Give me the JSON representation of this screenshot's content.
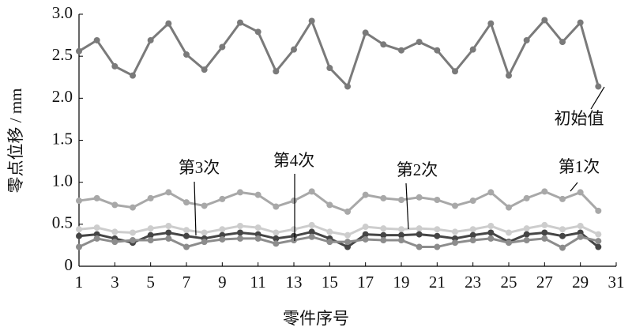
{
  "chart_data": {
    "type": "line",
    "y_label": "零点位移 / mm",
    "x_label": "零件序号",
    "x": [
      1,
      2,
      3,
      4,
      5,
      6,
      7,
      8,
      9,
      10,
      11,
      12,
      13,
      14,
      15,
      16,
      17,
      18,
      19,
      20,
      21,
      22,
      23,
      24,
      25,
      26,
      27,
      28,
      29,
      30
    ],
    "xlim": [
      1,
      31
    ],
    "xticks": [
      1,
      3,
      5,
      7,
      9,
      11,
      13,
      15,
      17,
      19,
      21,
      23,
      25,
      27,
      29,
      31
    ],
    "ylim": [
      0,
      3
    ],
    "yticks": [
      0,
      0.5,
      {
        "value": 1,
        "label": "1.0"
      },
      1.5,
      {
        "value": 2,
        "label": "2.0"
      },
      2.5,
      {
        "value": 3,
        "label": "3.0"
      }
    ],
    "series": [
      {
        "name": "初始值",
        "color": "#7a7a7a",
        "values": [
          2.56,
          2.69,
          2.38,
          2.27,
          2.69,
          2.89,
          2.52,
          2.34,
          2.61,
          2.9,
          2.79,
          2.32,
          2.58,
          2.92,
          2.36,
          2.14,
          2.78,
          2.64,
          2.57,
          2.67,
          2.57,
          2.32,
          2.58,
          2.89,
          2.27,
          2.69,
          2.93,
          2.67,
          2.9,
          2.14
        ]
      },
      {
        "name": "第1次",
        "color": "#a8a8a8",
        "values": [
          0.78,
          0.81,
          0.73,
          0.7,
          0.81,
          0.88,
          0.76,
          0.72,
          0.8,
          0.88,
          0.85,
          0.71,
          0.78,
          0.89,
          0.73,
          0.65,
          0.85,
          0.81,
          0.79,
          0.82,
          0.79,
          0.72,
          0.78,
          0.88,
          0.7,
          0.81,
          0.89,
          0.8,
          0.88,
          0.66
        ]
      },
      {
        "name": "第2次",
        "color": "#cdcdcd",
        "values": [
          0.44,
          0.46,
          0.41,
          0.4,
          0.45,
          0.48,
          0.43,
          0.4,
          0.44,
          0.48,
          0.46,
          0.4,
          0.44,
          0.49,
          0.41,
          0.37,
          0.47,
          0.45,
          0.44,
          0.45,
          0.44,
          0.41,
          0.44,
          0.48,
          0.4,
          0.45,
          0.49,
          0.44,
          0.48,
          0.38
        ]
      },
      {
        "name": "第3次",
        "color": "#454545",
        "values": [
          0.36,
          0.38,
          0.33,
          0.28,
          0.37,
          0.4,
          0.36,
          0.33,
          0.37,
          0.4,
          0.38,
          0.33,
          0.36,
          0.41,
          0.33,
          0.23,
          0.38,
          0.37,
          0.37,
          0.38,
          0.36,
          0.33,
          0.37,
          0.4,
          0.29,
          0.38,
          0.4,
          0.36,
          0.4,
          0.23
        ]
      },
      {
        "name": "第4次",
        "color": "#8c8c8c",
        "values": [
          0.23,
          0.33,
          0.29,
          0.31,
          0.31,
          0.33,
          0.23,
          0.29,
          0.32,
          0.33,
          0.33,
          0.27,
          0.31,
          0.35,
          0.29,
          0.29,
          0.32,
          0.31,
          0.31,
          0.23,
          0.23,
          0.28,
          0.31,
          0.33,
          0.28,
          0.31,
          0.33,
          0.22,
          0.35,
          0.3
        ]
      }
    ]
  }
}
